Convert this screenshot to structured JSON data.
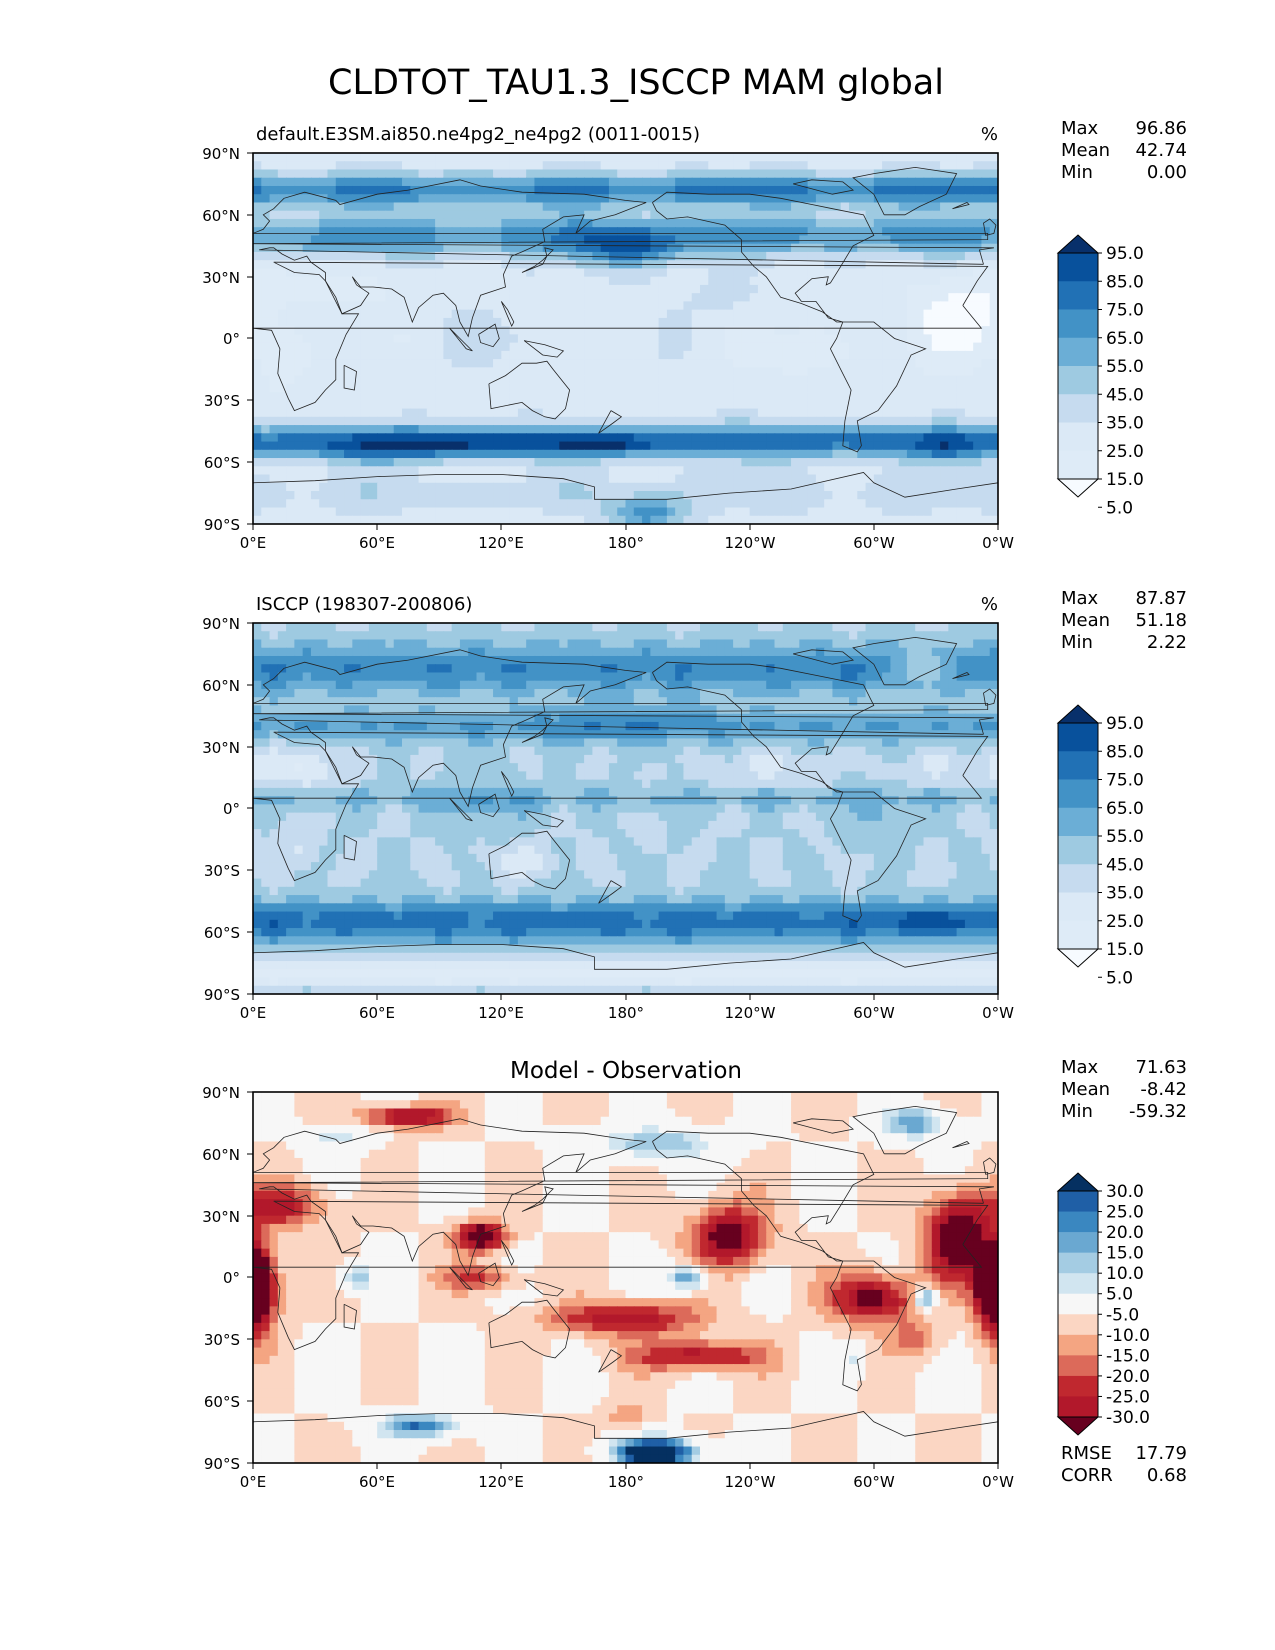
{
  "figure": {
    "title": "CLDTOT_TAU1.3_ISCCP MAM global"
  },
  "axes": {
    "lat_ticks": [
      "90°N",
      "60°N",
      "30°N",
      "0°",
      "30°S",
      "60°S",
      "90°S"
    ],
    "lon_ticks": [
      "0°E",
      "60°E",
      "120°E",
      "180°",
      "120°W",
      "60°W",
      "0°W"
    ]
  },
  "panels": [
    {
      "id": "model",
      "title_left": "default.E3SM.ai850.ne4pg2_ne4pg2 (0011-0015)",
      "title_right": "%",
      "title_center": "",
      "stats": [
        {
          "label": "Max",
          "value": "96.86"
        },
        {
          "label": "Mean",
          "value": "42.74"
        },
        {
          "label": "Min",
          "value": "0.00"
        }
      ],
      "colorbar": {
        "labels": [
          "95.0",
          "85.0",
          "75.0",
          "65.0",
          "55.0",
          "45.0",
          "35.0",
          "25.0",
          "15.0",
          "5.0"
        ],
        "colors": [
          "#08306b",
          "#08519c",
          "#2171b5",
          "#4292c6",
          "#6baed6",
          "#9ecae1",
          "#c6dbef",
          "#dbe9f6",
          "#deebf7",
          "#f7fbff"
        ]
      },
      "field": {
        "base": 30,
        "bands": [
          {
            "lat": 72,
            "width": 8,
            "amp": 45
          },
          {
            "lat": 50,
            "width": 10,
            "amp": 38
          },
          {
            "lat": -50,
            "width": 8,
            "amp": 52
          },
          {
            "lat": -75,
            "width": 10,
            "amp": 10
          }
        ],
        "blobs": [
          {
            "lon": 180,
            "lat": 43,
            "rlon": 28,
            "rlat": 10,
            "amp": 35
          },
          {
            "lon": 100,
            "lat": -52,
            "rlon": 35,
            "rlat": 6,
            "amp": 20
          },
          {
            "lon": 170,
            "lat": -52,
            "rlon": 25,
            "rlat": 5,
            "amp": 20
          },
          {
            "lon": 60,
            "lat": -55,
            "rlon": 30,
            "rlat": 6,
            "amp": 15
          },
          {
            "lon": 335,
            "lat": -55,
            "rlon": 15,
            "rlat": 6,
            "amp": 15
          },
          {
            "lon": 190,
            "lat": -85,
            "rlon": 18,
            "rlat": 8,
            "amp": 40
          },
          {
            "lon": 345,
            "lat": 10,
            "rlon": 25,
            "rlat": 20,
            "amp": -20
          },
          {
            "lon": 270,
            "lat": -5,
            "rlon": 20,
            "rlat": 12,
            "amp": -15
          },
          {
            "lon": 15,
            "lat": -10,
            "rlon": 12,
            "rlat": 15,
            "amp": -15
          },
          {
            "lon": 30,
            "lat": 25,
            "rlon": 30,
            "rlat": 10,
            "amp": -10
          },
          {
            "lon": 230,
            "lat": 20,
            "rlon": 20,
            "rlat": 10,
            "amp": 10
          },
          {
            "lon": 120,
            "lat": 0,
            "rlon": 25,
            "rlat": 10,
            "amp": 8
          }
        ],
        "waves": [
          {
            "kl": 4,
            "kt": 3,
            "amp": 5,
            "ph": 0.5
          },
          {
            "kl": 7,
            "kt": 5,
            "amp": 3,
            "ph": 1.3
          }
        ],
        "min": 0,
        "max": 96.86
      }
    },
    {
      "id": "obs",
      "title_left": "ISCCP (198307-200806)",
      "title_right": "%",
      "title_center": "",
      "stats": [
        {
          "label": "Max",
          "value": "87.87"
        },
        {
          "label": "Mean",
          "value": "51.18"
        },
        {
          "label": "Min",
          "value": "2.22"
        }
      ],
      "colorbar": {
        "labels": [
          "95.0",
          "85.0",
          "75.0",
          "65.0",
          "55.0",
          "45.0",
          "35.0",
          "25.0",
          "15.0",
          "5.0"
        ],
        "colors": [
          "#08306b",
          "#08519c",
          "#2171b5",
          "#4292c6",
          "#6baed6",
          "#9ecae1",
          "#c6dbef",
          "#dbe9f6",
          "#deebf7",
          "#f7fbff"
        ]
      },
      "field": {
        "base": 45,
        "bands": [
          {
            "lat": 68,
            "width": 12,
            "amp": 28
          },
          {
            "lat": 40,
            "width": 8,
            "amp": 20
          },
          {
            "lat": -55,
            "width": 10,
            "amp": 35
          },
          {
            "lat": -80,
            "width": 6,
            "amp": -25
          },
          {
            "lat": 5,
            "width": 5,
            "amp": 12
          }
        ],
        "blobs": [
          {
            "lon": 180,
            "lat": 42,
            "rlon": 35,
            "rlat": 10,
            "amp": 12
          },
          {
            "lon": 20,
            "lat": 20,
            "rlon": 25,
            "rlat": 10,
            "amp": -20
          },
          {
            "lon": 250,
            "lat": 20,
            "rlon": 25,
            "rlat": 8,
            "amp": -12
          },
          {
            "lon": 330,
            "lat": 20,
            "rlon": 20,
            "rlat": 8,
            "amp": -10
          },
          {
            "lon": 130,
            "lat": -25,
            "rlon": 15,
            "rlat": 8,
            "amp": -15
          },
          {
            "lon": 20,
            "lat": -20,
            "rlon": 10,
            "rlat": 10,
            "amp": -10
          },
          {
            "lon": 300,
            "lat": -5,
            "rlon": 15,
            "rlat": 12,
            "amp": 10
          },
          {
            "lon": 110,
            "lat": 0,
            "rlon": 25,
            "rlat": 12,
            "amp": 12
          },
          {
            "lon": 325,
            "lat": 68,
            "rlon": 12,
            "rlat": 8,
            "amp": -30
          },
          {
            "lon": 325,
            "lat": -55,
            "rlon": 18,
            "rlat": 5,
            "amp": 15
          }
        ],
        "waves": [
          {
            "kl": 9,
            "kt": 6,
            "amp": 4,
            "ph": 0.2
          },
          {
            "kl": 13,
            "kt": 9,
            "amp": 2.5,
            "ph": 2.1
          }
        ],
        "min": 2.22,
        "max": 87.87
      }
    },
    {
      "id": "diff",
      "title_left": "",
      "title_right": "",
      "title_center": "Model - Observation",
      "stats": [
        {
          "label": "Max",
          "value": "71.63"
        },
        {
          "label": "Mean",
          "value": "-8.42"
        },
        {
          "label": "Min",
          "value": "-59.32"
        }
      ],
      "extra_stats": [
        {
          "label": "RMSE",
          "value": "17.79"
        },
        {
          "label": "CORR",
          "value": "0.68"
        }
      ],
      "colorbar": {
        "labels": [
          "30.0",
          "25.0",
          "20.0",
          "15.0",
          "10.0",
          "5.0",
          "-5.0",
          "-10.0",
          "-15.0",
          "-20.0",
          "-25.0",
          "-30.0"
        ],
        "colors": [
          "#053061",
          "#1f5fa6",
          "#3a87c0",
          "#6aa8d1",
          "#a4cce3",
          "#d1e5f0",
          "#f7f7f7",
          "#fbd6c3",
          "#f4a582",
          "#dc6a5a",
          "#c0282f",
          "#b2182b",
          "#67001f"
        ]
      },
      "field": {
        "base": -5,
        "bands": [],
        "blobs": [
          {
            "lon": 15,
            "lat": 35,
            "rlon": 20,
            "rlat": 10,
            "amp": -22
          },
          {
            "lon": 0,
            "lat": -5,
            "rlon": 10,
            "rlat": 20,
            "amp": -30
          },
          {
            "lon": 360,
            "lat": -5,
            "rlon": 10,
            "rlat": 20,
            "amp": -30
          },
          {
            "lon": 75,
            "lat": 78,
            "rlon": 20,
            "rlat": 5,
            "amp": -30
          },
          {
            "lon": 110,
            "lat": 20,
            "rlon": 12,
            "rlat": 7,
            "amp": -35
          },
          {
            "lon": 110,
            "lat": 0,
            "rlon": 20,
            "rlat": 6,
            "amp": -15
          },
          {
            "lon": 230,
            "lat": 20,
            "rlon": 18,
            "rlat": 15,
            "amp": -30
          },
          {
            "lon": 300,
            "lat": -10,
            "rlon": 20,
            "rlat": 12,
            "amp": -30
          },
          {
            "lon": 340,
            "lat": 20,
            "rlon": 15,
            "rlat": 20,
            "amp": -35
          },
          {
            "lon": 180,
            "lat": -20,
            "rlon": 35,
            "rlat": 8,
            "amp": -25
          },
          {
            "lon": 215,
            "lat": -38,
            "rlon": 30,
            "rlat": 7,
            "amp": -25
          },
          {
            "lon": 320,
            "lat": -30,
            "rlon": 12,
            "rlat": 8,
            "amp": -12
          },
          {
            "lon": 180,
            "lat": -68,
            "rlon": 10,
            "rlat": 6,
            "amp": -10
          },
          {
            "lon": 195,
            "lat": -85,
            "rlon": 20,
            "rlat": 7,
            "amp": 50
          },
          {
            "lon": 80,
            "lat": -72,
            "rlon": 20,
            "rlat": 6,
            "amp": 30
          },
          {
            "lon": 320,
            "lat": 75,
            "rlon": 15,
            "rlat": 8,
            "amp": 25
          },
          {
            "lon": 195,
            "lat": 65,
            "rlon": 30,
            "rlat": 8,
            "amp": 20
          },
          {
            "lon": 210,
            "lat": 0,
            "rlon": 10,
            "rlat": 6,
            "amp": 28
          },
          {
            "lon": 325,
            "lat": -10,
            "rlon": 6,
            "rlat": 5,
            "amp": 30
          },
          {
            "lon": 50,
            "lat": 0,
            "rlon": 8,
            "rlat": 6,
            "amp": 18
          },
          {
            "lon": 290,
            "lat": -40,
            "rlon": 6,
            "rlat": 8,
            "amp": 10
          },
          {
            "lon": 40,
            "lat": 68,
            "rlon": 15,
            "rlat": 6,
            "amp": 12
          }
        ],
        "waves": [
          {
            "kl": 6,
            "kt": 4,
            "amp": 4,
            "ph": 0.9
          }
        ],
        "min": -59.32,
        "max": 71.63
      }
    }
  ]
}
